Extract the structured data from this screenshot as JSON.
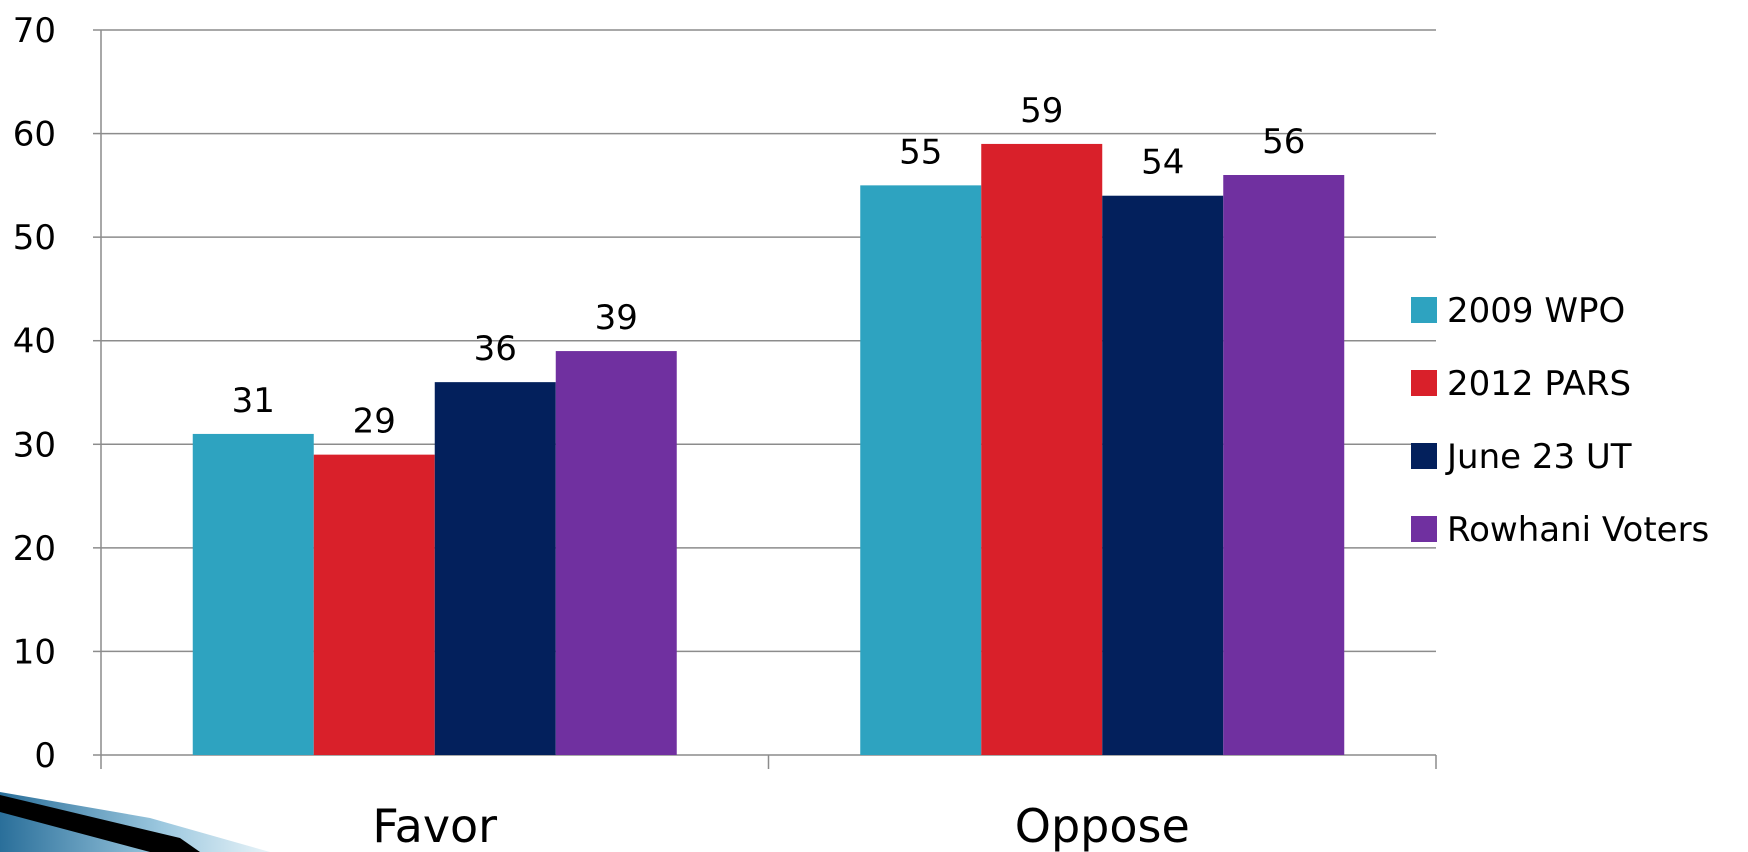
{
  "chart_data": {
    "type": "bar",
    "categories": [
      "Favor",
      "Oppose"
    ],
    "series": [
      {
        "name": "2009 WPO",
        "color": "#2ea3c0",
        "values": [
          31,
          55
        ]
      },
      {
        "name": "2012 PARS",
        "color": "#d9202a",
        "values": [
          29,
          59
        ]
      },
      {
        "name": "June 23 UT",
        "color": "#03205c",
        "values": [
          36,
          54
        ]
      },
      {
        "name": "Rowhani Voters",
        "color": "#7030a0",
        "values": [
          39,
          56
        ]
      }
    ],
    "ylim": [
      0,
      70
    ],
    "yticks": [
      0,
      10,
      20,
      30,
      40,
      50,
      60,
      70
    ],
    "grid": true,
    "legend": "right",
    "title": "",
    "xlabel": "",
    "ylabel": ""
  }
}
